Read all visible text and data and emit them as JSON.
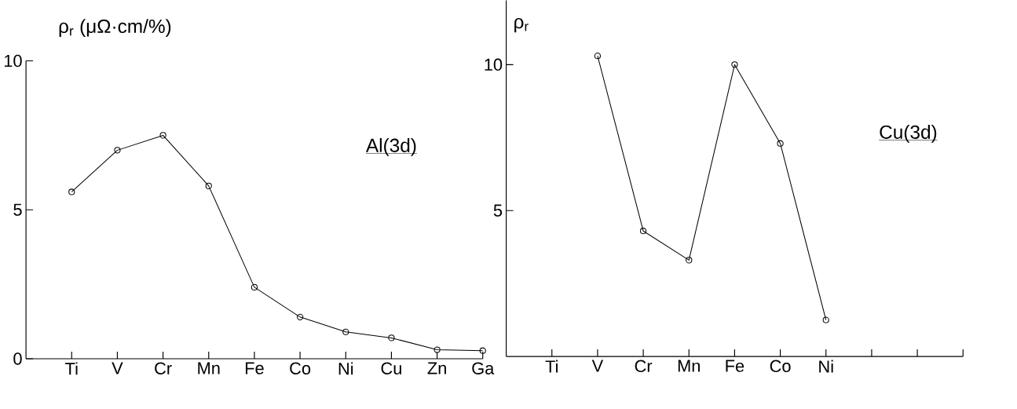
{
  "chart_data": [
    {
      "type": "line",
      "ylabel": "ρ$_{r}$ (μΩ·cm/%)",
      "categories": [
        "Ti",
        "V",
        "Cr",
        "Mn",
        "Fe",
        "Co",
        "Ni",
        "Cu",
        "Zn",
        "Ga"
      ],
      "values": [
        5.6,
        7.0,
        7.5,
        5.8,
        2.4,
        1.4,
        0.9,
        0.7,
        0.3,
        0.27
      ],
      "color": "#000000",
      "marker": "circle",
      "ylim": [
        0,
        10
      ],
      "yticks": [
        0,
        5,
        10
      ],
      "annotations": [
        "Al(3d)"
      ]
    },
    {
      "type": "line",
      "ylabel": "ρ$_{r}$",
      "categories": [
        "Ti",
        "V",
        "Cr",
        "Mn",
        "Fe",
        "Co",
        "Ni",
        null,
        null,
        null
      ],
      "values": [
        null,
        10.3,
        4.3,
        3.3,
        10.0,
        7.3,
        1.25,
        null,
        null,
        null
      ],
      "color": "#000000",
      "marker": "circle",
      "ylim": [
        0,
        12.2
      ],
      "yticks": [
        5,
        10
      ],
      "annotations": [
        "Cu(3d)"
      ]
    }
  ]
}
